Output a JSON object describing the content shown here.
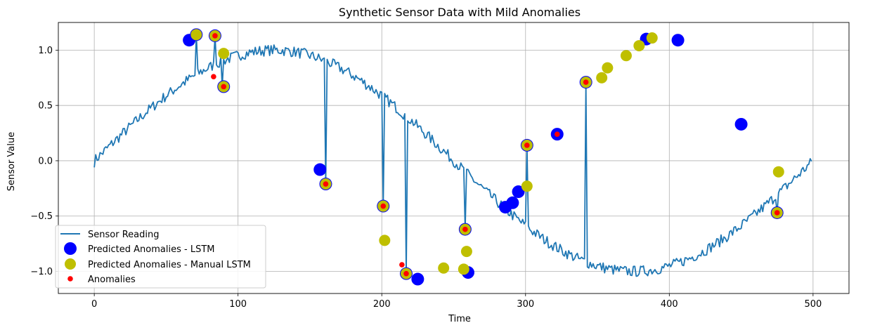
{
  "chart_data": {
    "type": "line",
    "title": "Synthetic Sensor Data with Mild Anomalies",
    "xlabel": "Time",
    "ylabel": "Sensor Value",
    "xlim": [
      -25,
      525
    ],
    "ylim": [
      -1.2,
      1.25
    ],
    "xticks": [
      0,
      100,
      200,
      300,
      400,
      500
    ],
    "yticks": [
      -1.0,
      -0.5,
      0.0,
      0.5,
      1.0
    ],
    "xtick_labels": [
      "0",
      "100",
      "200",
      "300",
      "400",
      "500"
    ],
    "ytick_labels": [
      "−1.0",
      "−0.5",
      "0.0",
      "0.5",
      "1.0"
    ],
    "grid": true,
    "legend_position": "lower-left",
    "series": [
      {
        "name": "Sensor Reading",
        "kind": "line",
        "color": "#1f77b4",
        "x_start": 0,
        "x_end": 499,
        "period": 500,
        "noise_amplitude": 0.05,
        "spikes": [
          {
            "x": 71,
            "y": 1.14
          },
          {
            "x": 84,
            "y": 1.13
          },
          {
            "x": 89,
            "y": 0.67
          },
          {
            "x": 161,
            "y": -0.21
          },
          {
            "x": 201,
            "y": -0.41
          },
          {
            "x": 217,
            "y": -1.02
          },
          {
            "x": 258,
            "y": -0.62
          },
          {
            "x": 301,
            "y": 0.14
          },
          {
            "x": 342,
            "y": 0.71
          },
          {
            "x": 475,
            "y": -0.47
          }
        ]
      },
      {
        "name": "Predicted Anomalies - LSTM",
        "kind": "scatter",
        "color": "#0000ff",
        "points": [
          [
            66,
            1.09
          ],
          [
            71,
            1.14
          ],
          [
            84,
            1.13
          ],
          [
            90,
            0.67
          ],
          [
            157,
            -0.08
          ],
          [
            161,
            -0.21
          ],
          [
            201,
            -0.41
          ],
          [
            217,
            -1.02
          ],
          [
            225,
            -1.07
          ],
          [
            258,
            -0.62
          ],
          [
            260,
            -1.01
          ],
          [
            286,
            -0.42
          ],
          [
            291,
            -0.38
          ],
          [
            295,
            -0.28
          ],
          [
            301,
            0.14
          ],
          [
            322,
            0.24
          ],
          [
            342,
            0.71
          ],
          [
            384,
            1.1
          ],
          [
            406,
            1.09
          ],
          [
            450,
            0.33
          ],
          [
            475,
            -0.47
          ]
        ]
      },
      {
        "name": "Predicted Anomalies - Manual LSTM",
        "kind": "scatter",
        "color": "#bfbf00",
        "points": [
          [
            71,
            1.14
          ],
          [
            84,
            1.13
          ],
          [
            90,
            0.97
          ],
          [
            90,
            0.67
          ],
          [
            161,
            -0.21
          ],
          [
            201,
            -0.41
          ],
          [
            202,
            -0.72
          ],
          [
            217,
            -1.02
          ],
          [
            243,
            -0.97
          ],
          [
            257,
            -0.98
          ],
          [
            258,
            -0.62
          ],
          [
            259,
            -0.82
          ],
          [
            301,
            0.14
          ],
          [
            301,
            -0.23
          ],
          [
            342,
            0.71
          ],
          [
            353,
            0.75
          ],
          [
            357,
            0.84
          ],
          [
            370,
            0.95
          ],
          [
            379,
            1.04
          ],
          [
            388,
            1.11
          ],
          [
            475,
            -0.47
          ],
          [
            476,
            -0.1
          ]
        ]
      },
      {
        "name": "Anomalies",
        "kind": "scatter",
        "color": "#ff0000",
        "points": [
          [
            83,
            0.76
          ],
          [
            84,
            1.13
          ],
          [
            90,
            0.67
          ],
          [
            161,
            -0.21
          ],
          [
            201,
            -0.41
          ],
          [
            214,
            -0.94
          ],
          [
            217,
            -1.02
          ],
          [
            258,
            -0.62
          ],
          [
            301,
            0.14
          ],
          [
            322,
            0.24
          ],
          [
            342,
            0.71
          ],
          [
            475,
            -0.47
          ]
        ]
      }
    ]
  }
}
